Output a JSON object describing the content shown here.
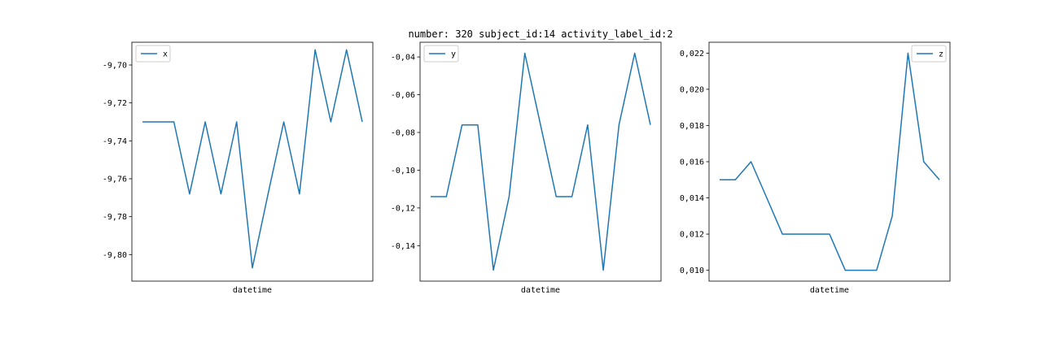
{
  "title": "number: 320 subject_id:14 activity_label_id:2",
  "colors": {
    "line": "#1f77b4"
  },
  "chart_data": [
    {
      "type": "line",
      "xlabel": "datetime",
      "legend": "top-left",
      "ylim": [
        -9.814,
        -9.688
      ],
      "yticks": [
        -9.7,
        -9.72,
        -9.74,
        -9.76,
        -9.78,
        -9.8
      ],
      "ytick_labels": [
        "-9,70",
        "-9,72",
        "-9,74",
        "-9,76",
        "-9,78",
        "-9,80"
      ],
      "series": [
        {
          "name": "x",
          "values": [
            -9.73,
            -9.73,
            -9.73,
            -9.768,
            -9.73,
            -9.768,
            -9.73,
            -9.807,
            -9.768,
            -9.73,
            -9.768,
            -9.692,
            -9.73,
            -9.692,
            -9.73
          ]
        }
      ]
    },
    {
      "type": "line",
      "xlabel": "datetime",
      "legend": "top-left",
      "ylim": [
        -0.1588,
        -0.0322
      ],
      "yticks": [
        -0.04,
        -0.06,
        -0.08,
        -0.1,
        -0.12,
        -0.14
      ],
      "ytick_labels": [
        "-0,04",
        "-0,06",
        "-0,08",
        "-0,10",
        "-0,12",
        "-0,14"
      ],
      "series": [
        {
          "name": "y",
          "values": [
            -0.114,
            -0.114,
            -0.076,
            -0.076,
            -0.153,
            -0.114,
            -0.038,
            -0.076,
            -0.114,
            -0.114,
            -0.076,
            -0.153,
            -0.076,
            -0.038,
            -0.076
          ]
        }
      ]
    },
    {
      "type": "line",
      "xlabel": "datetime",
      "legend": "top-right",
      "ylim": [
        0.0094,
        0.0226
      ],
      "yticks": [
        0.01,
        0.012,
        0.014,
        0.016,
        0.018,
        0.02,
        0.022
      ],
      "ytick_labels": [
        "0,010",
        "0,012",
        "0,014",
        "0,016",
        "0,018",
        "0,020",
        "0,022"
      ],
      "series": [
        {
          "name": "z",
          "values": [
            0.015,
            0.015,
            0.016,
            0.014,
            0.012,
            0.012,
            0.012,
            0.012,
            0.01,
            0.01,
            0.01,
            0.013,
            0.022,
            0.016,
            0.015
          ]
        }
      ]
    }
  ]
}
